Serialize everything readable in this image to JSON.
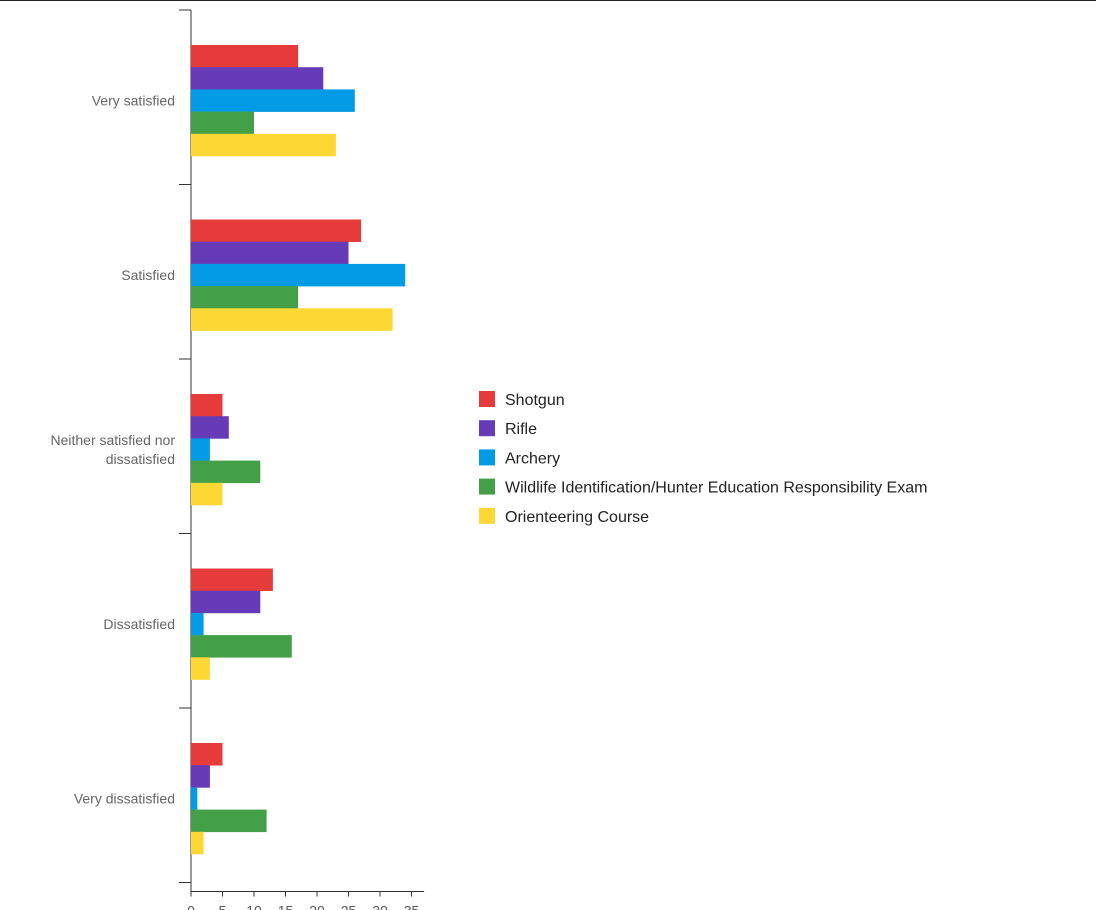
{
  "chart_data": {
    "type": "bar",
    "orientation": "horizontal",
    "categories": [
      "Very satisfied",
      "Satisfied",
      "Neither satisfied nor dissatisfied",
      "Dissatisfied",
      "Very dissatisfied"
    ],
    "category_lines": [
      [
        "Very satisfied"
      ],
      [
        "Satisfied"
      ],
      [
        "Neither satisfied nor",
        "dissatisfied"
      ],
      [
        "Dissatisfied"
      ],
      [
        "Very dissatisfied"
      ]
    ],
    "series": [
      {
        "name": "Shotgun",
        "color": "#e63b3b",
        "values": [
          17,
          27,
          5,
          13,
          5
        ]
      },
      {
        "name": "Rifle",
        "color": "#673ab7",
        "values": [
          21,
          25,
          6,
          11,
          3
        ]
      },
      {
        "name": "Archery",
        "color": "#039be5",
        "values": [
          26,
          34,
          3,
          2,
          1
        ]
      },
      {
        "name": "Wildlife Identification/Hunter Education Responsibility Exam",
        "color": "#43a047",
        "values": [
          10,
          17,
          11,
          16,
          12
        ]
      },
      {
        "name": "Orienteering Course",
        "color": "#fdd835",
        "values": [
          23,
          32,
          5,
          3,
          2
        ]
      }
    ],
    "x_ticks": [
      0,
      5,
      10,
      15,
      20,
      25,
      30,
      35
    ],
    "xlim": [
      0,
      37
    ],
    "title": "",
    "xlabel": "",
    "ylabel": "",
    "grid": false,
    "legend_position": "right"
  }
}
